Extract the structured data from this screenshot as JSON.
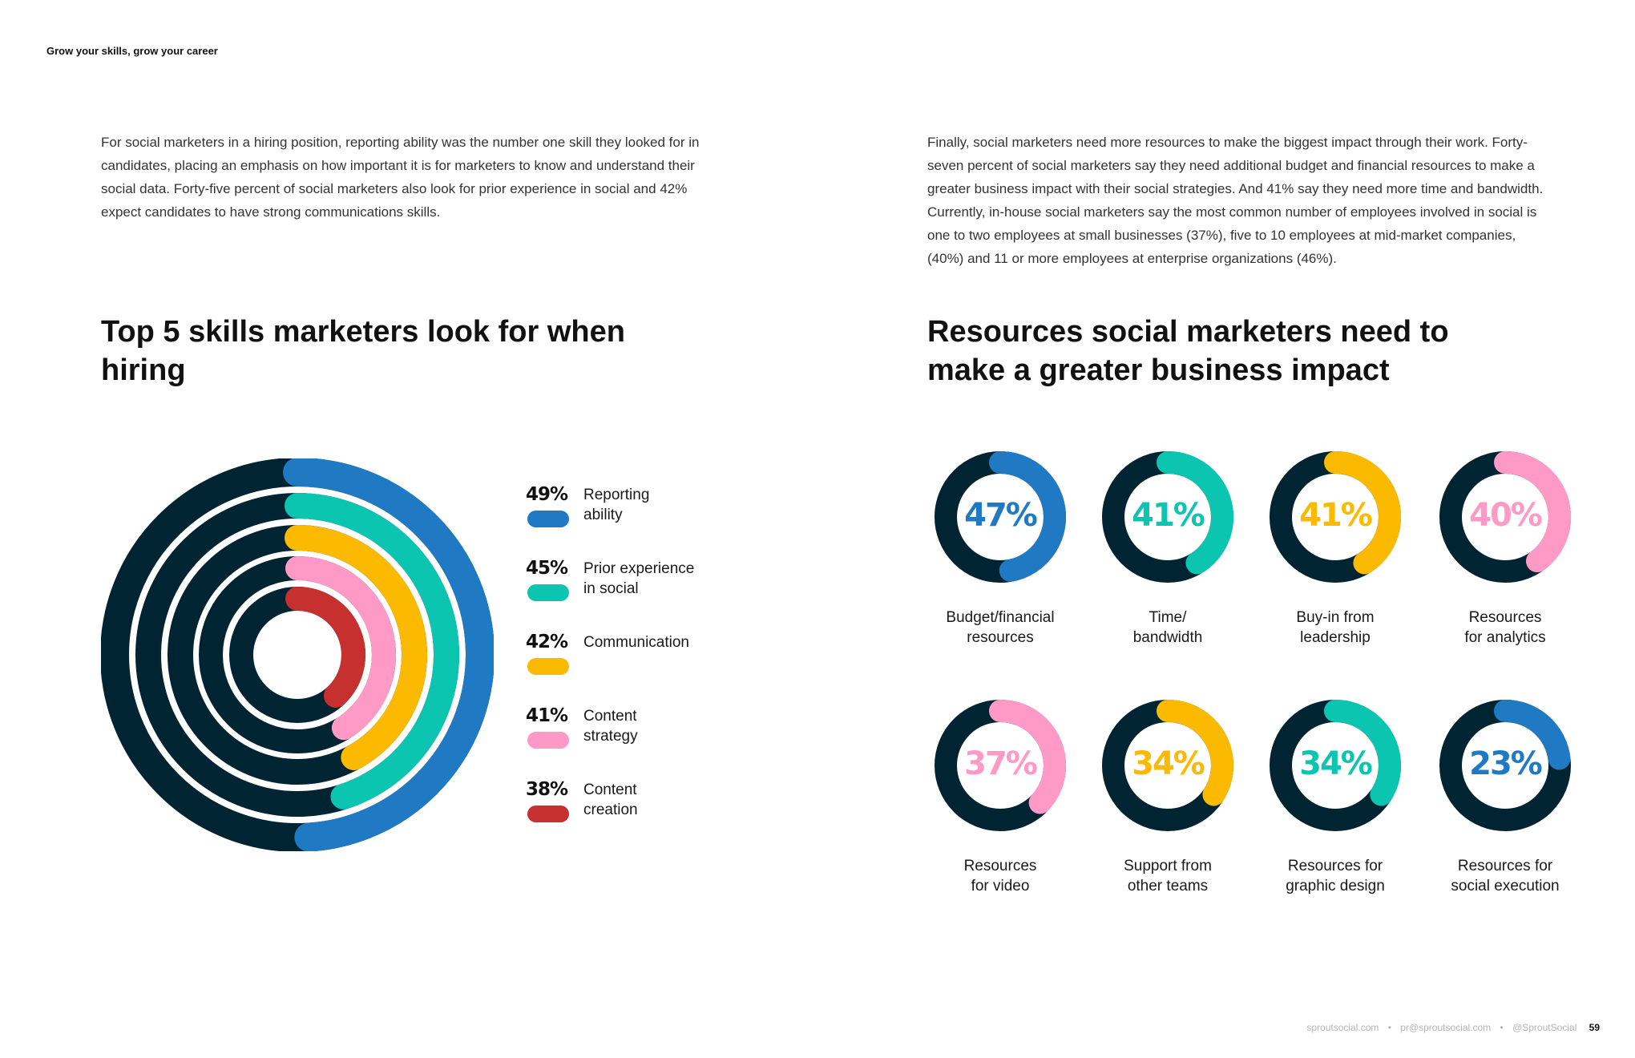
{
  "running_head": "Grow your skills, grow your career",
  "intro_left": "For social marketers in a hiring position, reporting ability was the number one skill they looked for in candidates, placing an emphasis on how important it is for marketers to know and understand their social data. Forty-five percent of social marketers also look for prior experience in social and 42% expect candidates to have strong communications skills.",
  "intro_right": "Finally, social marketers need more resources to make the biggest impact through their work. Forty-seven percent of social marketers say they need additional budget and financial resources to make a greater business impact with their social strategies. And 41% say they need more time and bandwidth. Currently, in-house social marketers say the most common number of employees involved in social is one to two employees at small businesses (37%), five to 10 employees at mid-market companies, (40%) and 11 or more employees at enterprise organizations (46%).",
  "colors": {
    "track": "#012433",
    "blue": "#2079c3",
    "teal": "#0cc5b0",
    "yellow": "#fbba00",
    "pink": "#ff99c5",
    "red": "#c6302f"
  },
  "chart_data": [
    {
      "type": "radial-bar",
      "title": "Top 5 skills marketers look for when hiring",
      "categories": [
        "Reporting ability",
        "Prior experience in social",
        "Communication",
        "Content strategy",
        "Content creation"
      ],
      "values": [
        49,
        45,
        42,
        41,
        38
      ],
      "labels": [
        "49%",
        "45%",
        "42%",
        "41%",
        "38%"
      ],
      "legend_text": [
        "Reporting\nability",
        "Prior experience\nin social",
        "Communication",
        "Content\nstrategy",
        "Content\ncreation"
      ],
      "colors": [
        "#2079c3",
        "#0cc5b0",
        "#fbba00",
        "#ff99c5",
        "#c6302f"
      ],
      "legend_position": "right"
    },
    {
      "type": "donut",
      "title": "Resources social marketers need to make a greater business impact",
      "categories": [
        "Budget/financial resources",
        "Time/ bandwidth",
        "Buy-in from leadership",
        "Resources for analytics",
        "Resources for video",
        "Support from other teams",
        "Resources for graphic design",
        "Resources for social execution"
      ],
      "values": [
        47,
        41,
        41,
        40,
        37,
        34,
        34,
        23
      ],
      "labels": [
        "47%",
        "41%",
        "41%",
        "40%",
        "37%",
        "34%",
        "34%",
        "23%"
      ],
      "label_text": [
        "Budget/financial\nresources",
        "Time/\nbandwidth",
        "Buy-in from\nleadership",
        "Resources\nfor analytics",
        "Resources\nfor video",
        "Support from\nother teams",
        "Resources for\ngraphic design",
        "Resources for\nsocial execution"
      ],
      "colors": [
        "#2079c3",
        "#0cc5b0",
        "#fbba00",
        "#ff99c5",
        "#ff99c5",
        "#fbba00",
        "#0cc5b0",
        "#2079c3"
      ]
    }
  ],
  "footer": {
    "site": "sproutsocial.com",
    "email": "pr@sproutsocial.com",
    "handle": "@SproutSocial",
    "separator": "•",
    "page": "59"
  }
}
